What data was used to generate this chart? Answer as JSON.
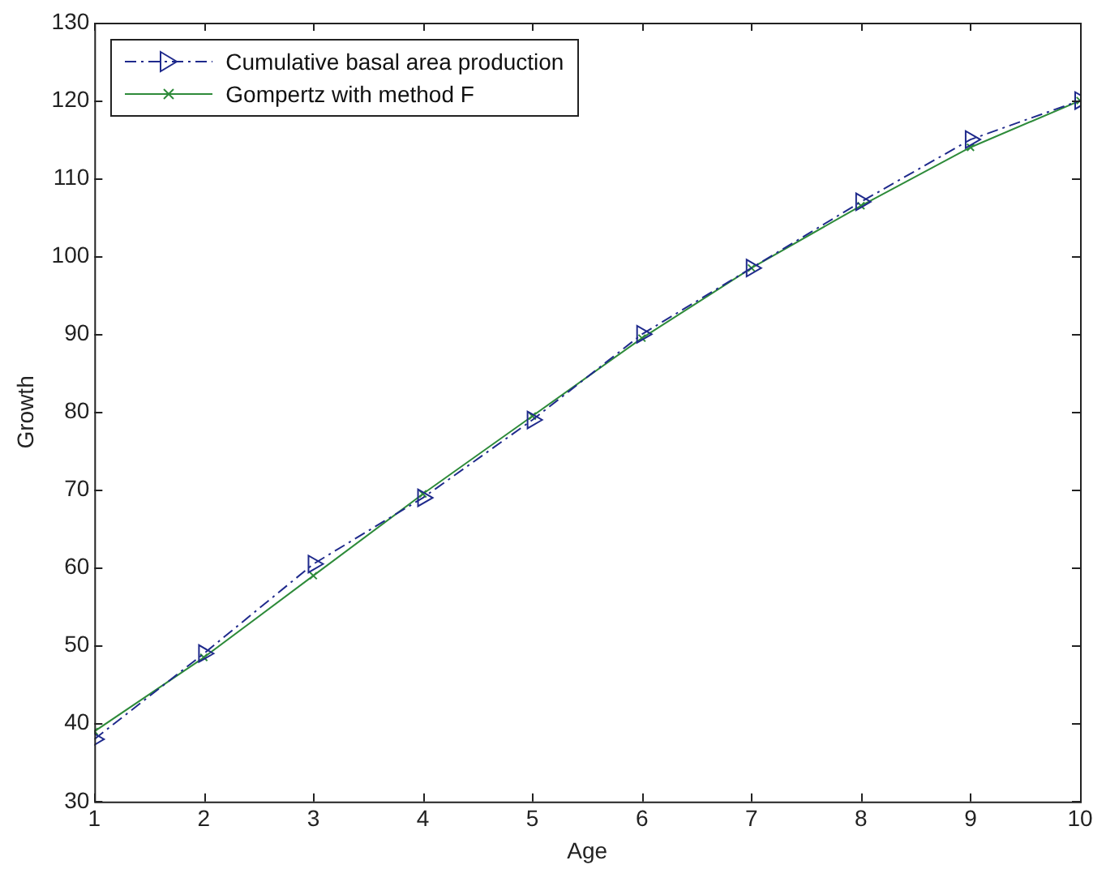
{
  "chart_data": {
    "type": "line",
    "xlabel": "Age",
    "ylabel": "Growth",
    "x": [
      1,
      2,
      3,
      4,
      5,
      6,
      7,
      8,
      9,
      10
    ],
    "xlim": [
      1,
      10
    ],
    "xticks": [
      1,
      2,
      3,
      4,
      5,
      6,
      7,
      8,
      9,
      10
    ],
    "ylim": [
      30,
      130
    ],
    "yticks": [
      30,
      40,
      50,
      60,
      70,
      80,
      90,
      100,
      110,
      120,
      130
    ],
    "grid": false,
    "legend": "top left",
    "series": [
      {
        "name": "Cumulative basal area production",
        "color": "#1f2a8c",
        "marker": "triangle",
        "line_style": "dashed",
        "values": [
          38,
          49,
          60.5,
          69,
          79,
          90,
          98.5,
          107,
          115,
          120
        ]
      },
      {
        "name": "Gompertz with method F",
        "color": "#2e8b3a",
        "marker": "cross",
        "line_style": "solid",
        "values": [
          39,
          48.5,
          59,
          69.5,
          79.5,
          89.5,
          98.5,
          106.5,
          114,
          120
        ]
      }
    ]
  }
}
